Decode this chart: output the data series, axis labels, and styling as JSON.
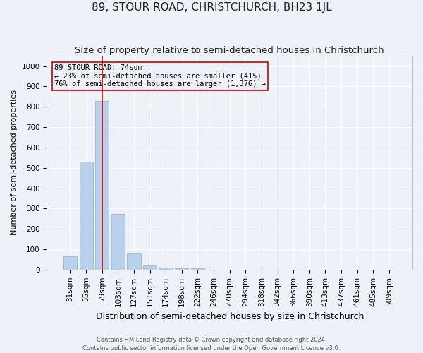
{
  "title": "89, STOUR ROAD, CHRISTCHURCH, BH23 1JL",
  "subtitle": "Size of property relative to semi-detached houses in Christchurch",
  "xlabel": "Distribution of semi-detached houses by size in Christchurch",
  "ylabel": "Number of semi-detached properties",
  "footnote1": "Contains HM Land Registry data © Crown copyright and database right 2024.",
  "footnote2": "Contains public sector information licensed under the Open Government Licence v3.0.",
  "bar_labels": [
    "31sqm",
    "55sqm",
    "79sqm",
    "103sqm",
    "127sqm",
    "151sqm",
    "174sqm",
    "198sqm",
    "222sqm",
    "246sqm",
    "270sqm",
    "294sqm",
    "318sqm",
    "342sqm",
    "366sqm",
    "390sqm",
    "413sqm",
    "437sqm",
    "461sqm",
    "485sqm",
    "509sqm"
  ],
  "bar_values": [
    65,
    530,
    830,
    275,
    80,
    20,
    10,
    8,
    8,
    0,
    0,
    0,
    0,
    0,
    0,
    0,
    0,
    0,
    0,
    0,
    0
  ],
  "bar_color": "#b8d0ea",
  "bar_edge_color": "#8ab0d0",
  "highlight_bar_index": 2,
  "highlight_color": "#cc0000",
  "annotation_text": "89 STOUR ROAD: 74sqm\n← 23% of semi-detached houses are smaller (415)\n76% of semi-detached houses are larger (1,376) →",
  "ylim": [
    0,
    1050
  ],
  "yticks": [
    0,
    100,
    200,
    300,
    400,
    500,
    600,
    700,
    800,
    900,
    1000
  ],
  "bg_color": "#eef2f8",
  "grid_color": "#ffffff",
  "title_fontsize": 11,
  "subtitle_fontsize": 9.5,
  "xlabel_fontsize": 9,
  "ylabel_fontsize": 8,
  "tick_fontsize": 7.5,
  "annot_fontsize": 7.5
}
